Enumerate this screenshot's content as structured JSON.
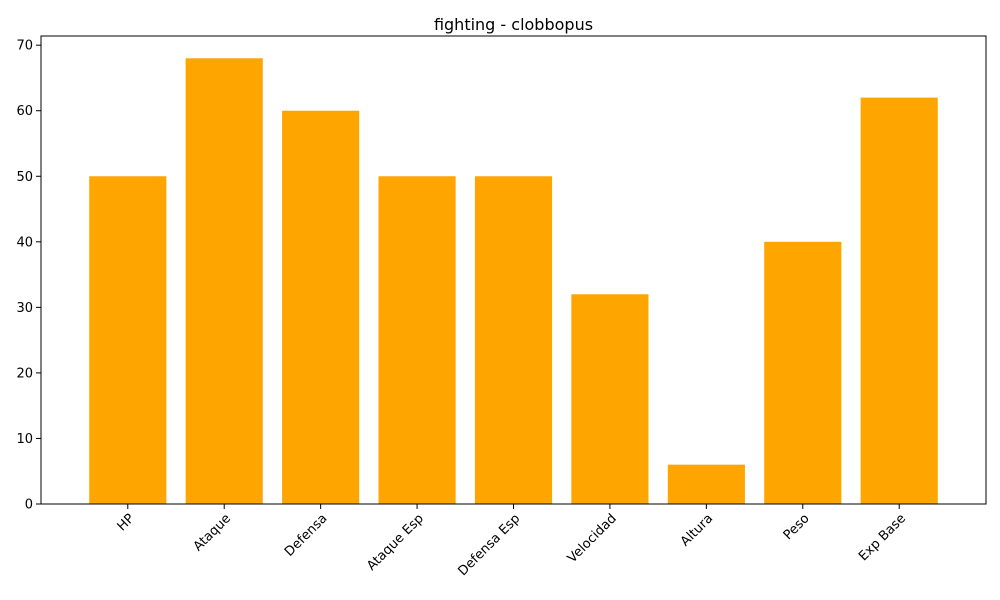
{
  "chart_data": {
    "type": "bar",
    "title": "fighting - clobbopus",
    "xlabel": "",
    "ylabel": "",
    "categories": [
      "HP",
      "Ataque",
      "Defensa",
      "Ataque Esp",
      "Defensa Esp",
      "Velocidad",
      "Altura",
      "Peso",
      "Exp Base"
    ],
    "values": [
      50,
      68,
      60,
      50,
      50,
      32,
      6,
      40,
      62
    ],
    "ylim": [
      0,
      71.4
    ],
    "yticks": [
      0,
      10,
      20,
      30,
      40,
      50,
      60,
      70
    ],
    "bar_color": "#ffa500",
    "grid": false,
    "legend": "none"
  }
}
